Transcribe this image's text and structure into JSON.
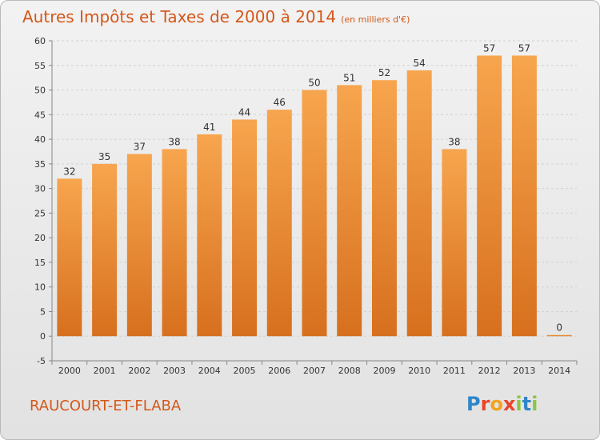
{
  "chart_data": {
    "type": "bar",
    "title": "Autres Impôts et Taxes de 2000 à 2014",
    "subtitle": "(en milliers d'€)",
    "categories": [
      "2000",
      "2001",
      "2002",
      "2003",
      "2004",
      "2005",
      "2006",
      "2007",
      "2008",
      "2009",
      "2010",
      "2011",
      "2012",
      "2013",
      "2014"
    ],
    "values": [
      32,
      35,
      37,
      38,
      41,
      44,
      46,
      50,
      51,
      52,
      54,
      38,
      57,
      57,
      0
    ],
    "ylim": [
      -5,
      60
    ],
    "yticks": [
      -5,
      0,
      5,
      10,
      15,
      20,
      25,
      30,
      35,
      40,
      45,
      50,
      55,
      60
    ],
    "grid": true,
    "bar_color": "#f08c32",
    "xlabel": "",
    "ylabel": ""
  },
  "footer": {
    "commune": "RAUCOURT-ET-FLABA",
    "logo_text": "Proxiti"
  }
}
